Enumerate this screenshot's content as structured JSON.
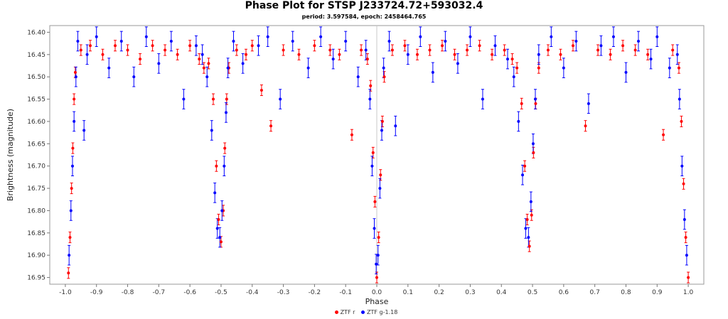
{
  "chart_data": {
    "type": "scatter",
    "title": "Phase Plot for STSP J233724.72+593032.4",
    "subtitle": "period: 3.597584, epoch: 2458464.765",
    "xlabel": "Phase",
    "ylabel": "Brightness (magnitude)",
    "xlim": [
      -1.05,
      1.05
    ],
    "ylim": [
      16.385,
      16.965
    ],
    "y_inverted": true,
    "grid": false,
    "legend_position": "bottom-center",
    "x_ticks": [
      -1.0,
      -0.9,
      -0.8,
      -0.7,
      -0.6,
      -0.5,
      -0.4,
      -0.3,
      -0.2,
      -0.1,
      0.0,
      0.1,
      0.2,
      0.3,
      0.4,
      0.5,
      0.6,
      0.7,
      0.8,
      0.9,
      1.0
    ],
    "x_tick_labels": [
      "-1.0",
      "-0.9",
      "-0.8",
      "-0.7",
      "-0.6",
      "-0.5",
      "-0.4",
      "-0.3",
      "-0.2",
      "-0.1",
      "0.0",
      "0.1",
      "0.2",
      "0.3",
      "0.4",
      "0.5",
      "0.6",
      "0.7",
      "0.8",
      "0.9",
      "1.0"
    ],
    "y_ticks": [
      16.4,
      16.45,
      16.5,
      16.55,
      16.6,
      16.65,
      16.7,
      16.75,
      16.8,
      16.85,
      16.9,
      16.95
    ],
    "y_tick_labels": [
      "16.40",
      "16.45",
      "16.50",
      "16.55",
      "16.60",
      "16.65",
      "16.70",
      "16.75",
      "16.80",
      "16.85",
      "16.90",
      "16.95"
    ],
    "series": [
      {
        "name": "ZTF r",
        "color": "#ff0000",
        "error_bar": 0.012,
        "points": [
          [
            -0.99,
            16.94
          ],
          [
            -0.985,
            16.86
          ],
          [
            -0.98,
            16.75
          ],
          [
            -0.976,
            16.66
          ],
          [
            -0.972,
            16.55
          ],
          [
            -0.968,
            16.49
          ],
          [
            -0.95,
            16.44
          ],
          [
            -0.92,
            16.43
          ],
          [
            -0.88,
            16.45
          ],
          [
            -0.84,
            16.43
          ],
          [
            -0.8,
            16.44
          ],
          [
            -0.76,
            16.46
          ],
          [
            -0.72,
            16.43
          ],
          [
            -0.68,
            16.44
          ],
          [
            -0.64,
            16.45
          ],
          [
            -0.6,
            16.43
          ],
          [
            -0.57,
            16.46
          ],
          [
            -0.555,
            16.48
          ],
          [
            -0.54,
            16.47
          ],
          [
            -0.525,
            16.55
          ],
          [
            -0.515,
            16.7
          ],
          [
            -0.508,
            16.82
          ],
          [
            -0.5,
            16.87
          ],
          [
            -0.493,
            16.8
          ],
          [
            -0.488,
            16.66
          ],
          [
            -0.482,
            16.55
          ],
          [
            -0.475,
            16.48
          ],
          [
            -0.45,
            16.44
          ],
          [
            -0.42,
            16.45
          ],
          [
            -0.4,
            16.43
          ],
          [
            -0.37,
            16.53
          ],
          [
            -0.34,
            16.61
          ],
          [
            -0.3,
            16.44
          ],
          [
            -0.25,
            16.45
          ],
          [
            -0.2,
            16.43
          ],
          [
            -0.15,
            16.44
          ],
          [
            -0.12,
            16.45
          ],
          [
            -0.08,
            16.63
          ],
          [
            -0.05,
            16.44
          ],
          [
            -0.03,
            16.46
          ],
          [
            -0.02,
            16.52
          ],
          [
            -0.012,
            16.67
          ],
          [
            -0.006,
            16.78
          ],
          [
            0.0,
            16.95
          ],
          [
            0.006,
            16.86
          ],
          [
            0.012,
            16.72
          ],
          [
            0.018,
            16.6
          ],
          [
            0.024,
            16.5
          ],
          [
            0.05,
            16.44
          ],
          [
            0.09,
            16.43
          ],
          [
            0.13,
            16.45
          ],
          [
            0.17,
            16.44
          ],
          [
            0.21,
            16.43
          ],
          [
            0.25,
            16.45
          ],
          [
            0.29,
            16.44
          ],
          [
            0.33,
            16.43
          ],
          [
            0.37,
            16.45
          ],
          [
            0.41,
            16.44
          ],
          [
            0.435,
            16.46
          ],
          [
            0.45,
            16.48
          ],
          [
            0.465,
            16.56
          ],
          [
            0.475,
            16.7
          ],
          [
            0.483,
            16.82
          ],
          [
            0.49,
            16.88
          ],
          [
            0.497,
            16.81
          ],
          [
            0.503,
            16.67
          ],
          [
            0.51,
            16.56
          ],
          [
            0.52,
            16.48
          ],
          [
            0.55,
            16.44
          ],
          [
            0.59,
            16.45
          ],
          [
            0.63,
            16.43
          ],
          [
            0.67,
            16.61
          ],
          [
            0.71,
            16.44
          ],
          [
            0.75,
            16.45
          ],
          [
            0.79,
            16.43
          ],
          [
            0.83,
            16.44
          ],
          [
            0.87,
            16.45
          ],
          [
            0.92,
            16.63
          ],
          [
            0.95,
            16.44
          ],
          [
            0.97,
            16.48
          ],
          [
            0.978,
            16.6
          ],
          [
            0.985,
            16.74
          ],
          [
            0.992,
            16.86
          ],
          [
            1.0,
            16.95
          ]
        ]
      },
      {
        "name": "ZTF g-1.18",
        "color": "#0000ff",
        "error_bar": 0.022,
        "points": [
          [
            -0.988,
            16.9
          ],
          [
            -0.982,
            16.8
          ],
          [
            -0.977,
            16.7
          ],
          [
            -0.972,
            16.6
          ],
          [
            -0.966,
            16.5
          ],
          [
            -0.96,
            16.42
          ],
          [
            -0.94,
            16.62
          ],
          [
            -0.93,
            16.45
          ],
          [
            -0.9,
            16.41
          ],
          [
            -0.86,
            16.48
          ],
          [
            -0.82,
            16.42
          ],
          [
            -0.78,
            16.5
          ],
          [
            -0.74,
            16.41
          ],
          [
            -0.7,
            16.47
          ],
          [
            -0.66,
            16.42
          ],
          [
            -0.62,
            16.55
          ],
          [
            -0.58,
            16.43
          ],
          [
            -0.56,
            16.45
          ],
          [
            -0.545,
            16.5
          ],
          [
            -0.53,
            16.62
          ],
          [
            -0.52,
            16.76
          ],
          [
            -0.512,
            16.84
          ],
          [
            -0.504,
            16.86
          ],
          [
            -0.497,
            16.8
          ],
          [
            -0.49,
            16.7
          ],
          [
            -0.484,
            16.58
          ],
          [
            -0.478,
            16.48
          ],
          [
            -0.46,
            16.42
          ],
          [
            -0.43,
            16.47
          ],
          [
            -0.38,
            16.43
          ],
          [
            -0.35,
            16.41
          ],
          [
            -0.31,
            16.55
          ],
          [
            -0.27,
            16.42
          ],
          [
            -0.22,
            16.48
          ],
          [
            -0.18,
            16.41
          ],
          [
            -0.14,
            16.46
          ],
          [
            -0.1,
            16.42
          ],
          [
            -0.06,
            16.5
          ],
          [
            -0.035,
            16.44
          ],
          [
            -0.022,
            16.55
          ],
          [
            -0.015,
            16.7
          ],
          [
            -0.008,
            16.84
          ],
          [
            -0.002,
            16.92
          ],
          [
            0.004,
            16.9
          ],
          [
            0.01,
            16.75
          ],
          [
            0.016,
            16.62
          ],
          [
            0.022,
            16.48
          ],
          [
            0.04,
            16.42
          ],
          [
            0.06,
            16.61
          ],
          [
            0.1,
            16.45
          ],
          [
            0.14,
            16.41
          ],
          [
            0.18,
            16.49
          ],
          [
            0.22,
            16.42
          ],
          [
            0.26,
            16.47
          ],
          [
            0.3,
            16.41
          ],
          [
            0.34,
            16.55
          ],
          [
            0.38,
            16.43
          ],
          [
            0.42,
            16.46
          ],
          [
            0.44,
            16.5
          ],
          [
            0.455,
            16.6
          ],
          [
            0.468,
            16.72
          ],
          [
            0.478,
            16.84
          ],
          [
            0.487,
            16.86
          ],
          [
            0.495,
            16.78
          ],
          [
            0.502,
            16.65
          ],
          [
            0.509,
            16.55
          ],
          [
            0.52,
            16.45
          ],
          [
            0.56,
            16.41
          ],
          [
            0.6,
            16.48
          ],
          [
            0.64,
            16.42
          ],
          [
            0.68,
            16.56
          ],
          [
            0.72,
            16.43
          ],
          [
            0.76,
            16.41
          ],
          [
            0.8,
            16.49
          ],
          [
            0.84,
            16.42
          ],
          [
            0.88,
            16.46
          ],
          [
            0.9,
            16.41
          ],
          [
            0.94,
            16.48
          ],
          [
            0.965,
            16.45
          ],
          [
            0.972,
            16.55
          ],
          [
            0.98,
            16.7
          ],
          [
            0.988,
            16.82
          ],
          [
            0.995,
            16.9
          ]
        ]
      }
    ]
  },
  "legend": {
    "items": [
      {
        "label": "ZTF r",
        "color": "#ff0000"
      },
      {
        "label": "ZTF g-1.18",
        "color": "#0000ff"
      }
    ]
  }
}
